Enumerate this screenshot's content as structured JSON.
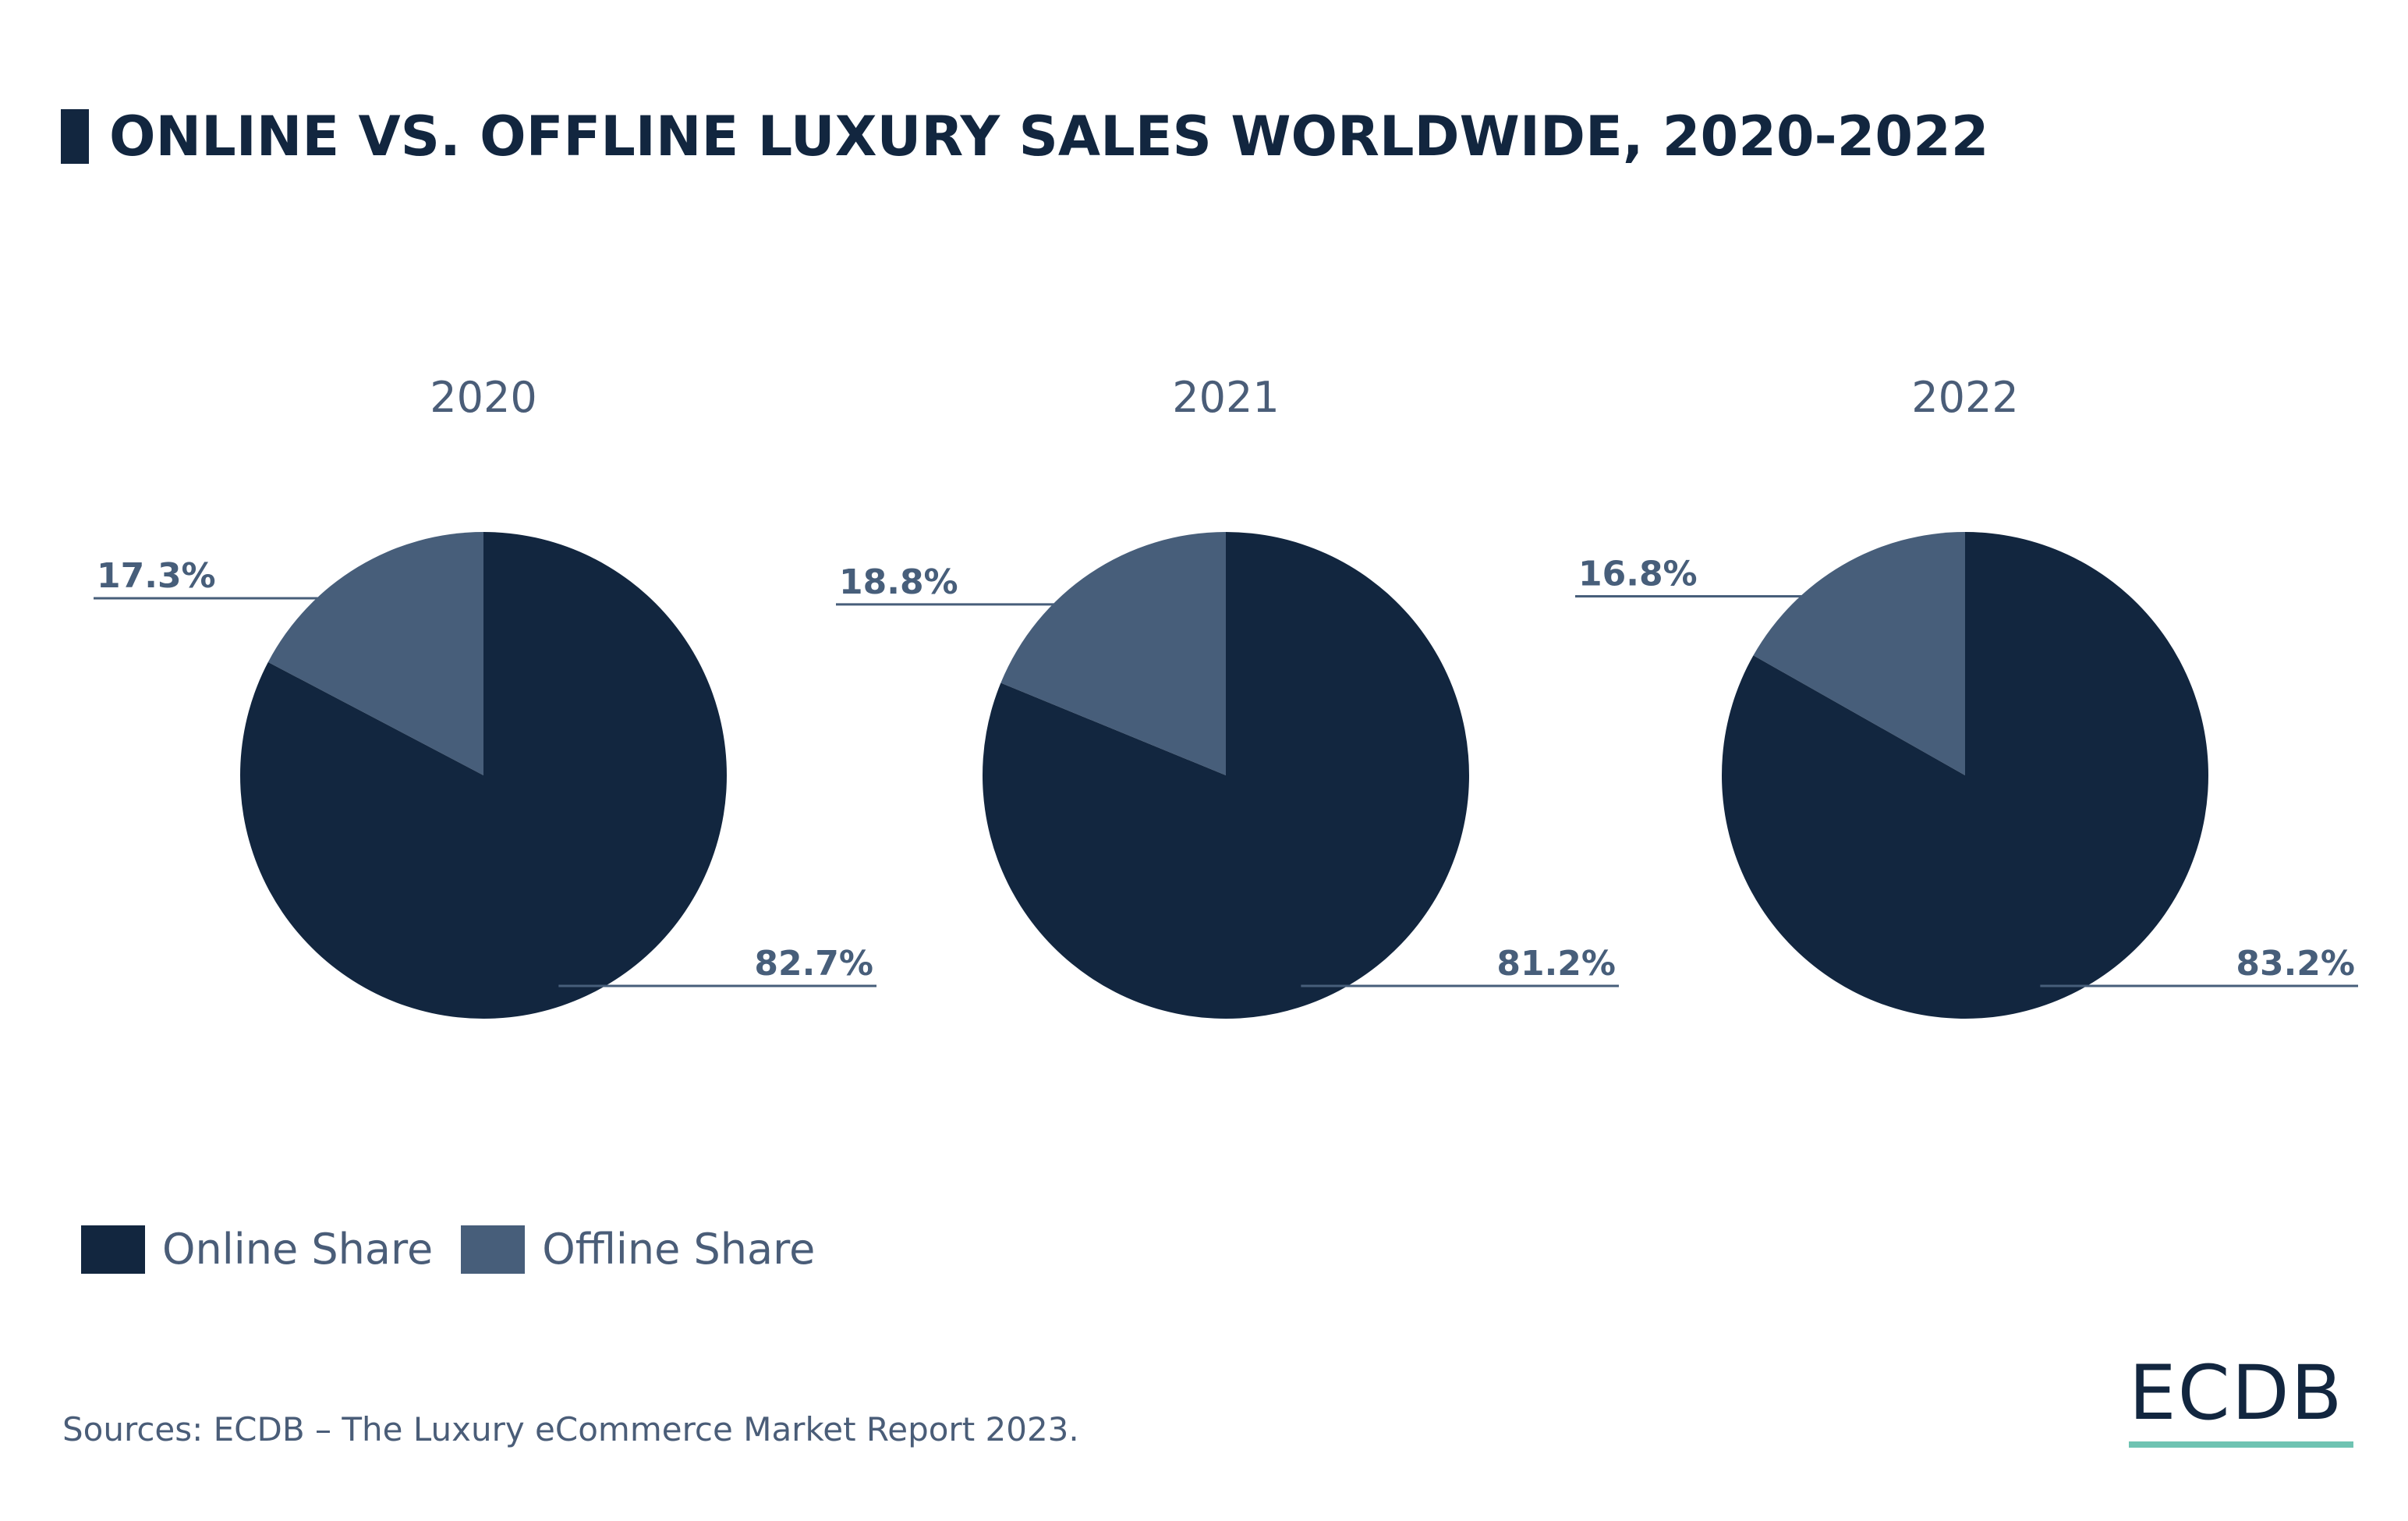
{
  "chart_data": {
    "type": "pie",
    "title": "ONLINE VS. OFFLINE LUXURY SALES WORLDWIDE, 2020-2022",
    "legend": {
      "placement": "bottom-left",
      "entries": [
        "Online Share",
        "Offline Share"
      ]
    },
    "colors": {
      "Online Share": "#12263f",
      "Offline Share": "#475e7a"
    },
    "charts": [
      {
        "title": "2020",
        "slices": [
          {
            "name": "Online Share",
            "value": 82.7,
            "label": "82.7%"
          },
          {
            "name": "Offline Share",
            "value": 17.3,
            "label": "17.3%"
          }
        ]
      },
      {
        "title": "2021",
        "slices": [
          {
            "name": "Online Share",
            "value": 81.2,
            "label": "81.2%"
          },
          {
            "name": "Offline Share",
            "value": 18.8,
            "label": "18.8%"
          }
        ]
      },
      {
        "title": "2022",
        "slices": [
          {
            "name": "Online Share",
            "value": 83.2,
            "label": "83.2%"
          },
          {
            "name": "Offline Share",
            "value": 16.8,
            "label": "16.8%"
          }
        ]
      }
    ]
  },
  "source": "Sources: ECDB – The Luxury eCommerce Market Report 2023.",
  "logo": "ECDB"
}
